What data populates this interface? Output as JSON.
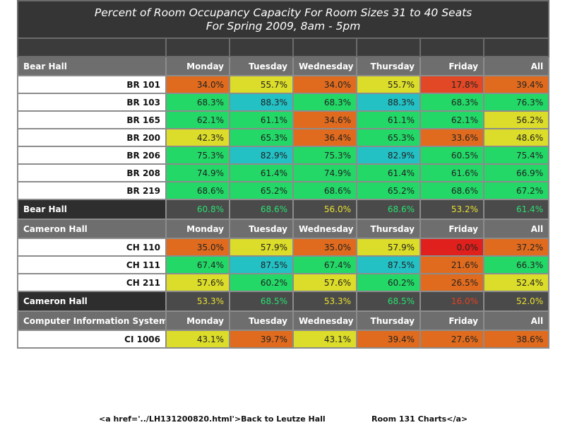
{
  "title_line1": "Percent of Room Occupancy Capacity For Room Sizes 31 to 40 Seats",
  "title_line2": "For Spring 2009, 8am - 5pm",
  "colors": {
    "orange": "#e06b1e",
    "yellow": "#dcdc2a",
    "green": "#23d867",
    "teal": "#23c0c4",
    "red_orange": "#e24825",
    "red": "#e0201c",
    "summary_green": "#28e070",
    "summary_yellow": "#e8e030",
    "summary_red": "#e84020"
  },
  "sections": [
    {
      "name": "Bear Hall",
      "days": [
        "Monday",
        "Tuesday",
        "Wednesday",
        "Thursday",
        "Friday",
        "All"
      ],
      "rows": [
        {
          "room": "BR 101",
          "cells": [
            {
              "v": "34.0%",
              "c": "orange"
            },
            {
              "v": "55.7%",
              "c": "yellow"
            },
            {
              "v": "34.0%",
              "c": "orange"
            },
            {
              "v": "55.7%",
              "c": "yellow"
            },
            {
              "v": "17.8%",
              "c": "red_orange"
            },
            {
              "v": "39.4%",
              "c": "orange"
            }
          ]
        },
        {
          "room": "BR 103",
          "cells": [
            {
              "v": "68.3%",
              "c": "green"
            },
            {
              "v": "88.3%",
              "c": "teal"
            },
            {
              "v": "68.3%",
              "c": "green"
            },
            {
              "v": "88.3%",
              "c": "teal"
            },
            {
              "v": "68.3%",
              "c": "green"
            },
            {
              "v": "76.3%",
              "c": "green"
            }
          ]
        },
        {
          "room": "BR 165",
          "cells": [
            {
              "v": "62.1%",
              "c": "green"
            },
            {
              "v": "61.1%",
              "c": "green"
            },
            {
              "v": "34.6%",
              "c": "orange"
            },
            {
              "v": "61.1%",
              "c": "green"
            },
            {
              "v": "62.1%",
              "c": "green"
            },
            {
              "v": "56.2%",
              "c": "yellow"
            }
          ]
        },
        {
          "room": "BR 200",
          "cells": [
            {
              "v": "42.3%",
              "c": "yellow"
            },
            {
              "v": "65.3%",
              "c": "green"
            },
            {
              "v": "36.4%",
              "c": "orange"
            },
            {
              "v": "65.3%",
              "c": "green"
            },
            {
              "v": "33.6%",
              "c": "orange"
            },
            {
              "v": "48.6%",
              "c": "yellow"
            }
          ]
        },
        {
          "room": "BR 206",
          "cells": [
            {
              "v": "75.3%",
              "c": "green"
            },
            {
              "v": "82.9%",
              "c": "teal"
            },
            {
              "v": "75.3%",
              "c": "green"
            },
            {
              "v": "82.9%",
              "c": "teal"
            },
            {
              "v": "60.5%",
              "c": "green"
            },
            {
              "v": "75.4%",
              "c": "green"
            }
          ]
        },
        {
          "room": "BR 208",
          "cells": [
            {
              "v": "74.9%",
              "c": "green"
            },
            {
              "v": "61.4%",
              "c": "green"
            },
            {
              "v": "74.9%",
              "c": "green"
            },
            {
              "v": "61.4%",
              "c": "green"
            },
            {
              "v": "61.6%",
              "c": "green"
            },
            {
              "v": "66.9%",
              "c": "green"
            }
          ]
        },
        {
          "room": "BR 219",
          "cells": [
            {
              "v": "68.6%",
              "c": "green"
            },
            {
              "v": "65.2%",
              "c": "green"
            },
            {
              "v": "68.6%",
              "c": "green"
            },
            {
              "v": "65.2%",
              "c": "green"
            },
            {
              "v": "68.6%",
              "c": "green"
            },
            {
              "v": "67.2%",
              "c": "green"
            }
          ]
        }
      ],
      "summary": {
        "name": "Bear Hall",
        "cells": [
          {
            "v": "60.8%",
            "c": "summary_green"
          },
          {
            "v": "68.6%",
            "c": "summary_green"
          },
          {
            "v": "56.0%",
            "c": "summary_yellow"
          },
          {
            "v": "68.6%",
            "c": "summary_green"
          },
          {
            "v": "53.2%",
            "c": "summary_yellow"
          },
          {
            "v": "61.4%",
            "c": "summary_green"
          }
        ]
      }
    },
    {
      "name": "Cameron Hall",
      "days": [
        "Monday",
        "Tuesday",
        "Wednesday",
        "Thursday",
        "Friday",
        "All"
      ],
      "rows": [
        {
          "room": "CH 110",
          "cells": [
            {
              "v": "35.0%",
              "c": "orange"
            },
            {
              "v": "57.9%",
              "c": "yellow"
            },
            {
              "v": "35.0%",
              "c": "orange"
            },
            {
              "v": "57.9%",
              "c": "yellow"
            },
            {
              "v": "0.0%",
              "c": "red"
            },
            {
              "v": "37.2%",
              "c": "orange"
            }
          ]
        },
        {
          "room": "CH 111",
          "cells": [
            {
              "v": "67.4%",
              "c": "green"
            },
            {
              "v": "87.5%",
              "c": "teal"
            },
            {
              "v": "67.4%",
              "c": "green"
            },
            {
              "v": "87.5%",
              "c": "teal"
            },
            {
              "v": "21.6%",
              "c": "orange"
            },
            {
              "v": "66.3%",
              "c": "green"
            }
          ]
        },
        {
          "room": "CH 211",
          "cells": [
            {
              "v": "57.6%",
              "c": "yellow"
            },
            {
              "v": "60.2%",
              "c": "green"
            },
            {
              "v": "57.6%",
              "c": "yellow"
            },
            {
              "v": "60.2%",
              "c": "green"
            },
            {
              "v": "26.5%",
              "c": "orange"
            },
            {
              "v": "52.4%",
              "c": "yellow"
            }
          ]
        }
      ],
      "summary": {
        "name": "Cameron Hall",
        "cells": [
          {
            "v": "53.3%",
            "c": "summary_yellow"
          },
          {
            "v": "68.5%",
            "c": "summary_green"
          },
          {
            "v": "53.3%",
            "c": "summary_yellow"
          },
          {
            "v": "68.5%",
            "c": "summary_green"
          },
          {
            "v": "16.0%",
            "c": "summary_red"
          },
          {
            "v": "52.0%",
            "c": "summary_yellow"
          }
        ]
      }
    },
    {
      "name": "Computer Information Systems",
      "days": [
        "Monday",
        "Tuesday",
        "Wednesday",
        "Thursday",
        "Friday",
        "All"
      ],
      "rows": [
        {
          "room": "CI 1006",
          "cells": [
            {
              "v": "43.1%",
              "c": "yellow"
            },
            {
              "v": "39.7%",
              "c": "orange"
            },
            {
              "v": "43.1%",
              "c": "yellow"
            },
            {
              "v": "39.4%",
              "c": "orange"
            },
            {
              "v": "27.6%",
              "c": "orange"
            },
            {
              "v": "38.6%",
              "c": "orange"
            }
          ]
        }
      ]
    }
  ],
  "footer": {
    "part1": "<a href='../LH131200820.html'>Back to Leutze Hall",
    "part2": "Room 131 Charts</a>"
  }
}
